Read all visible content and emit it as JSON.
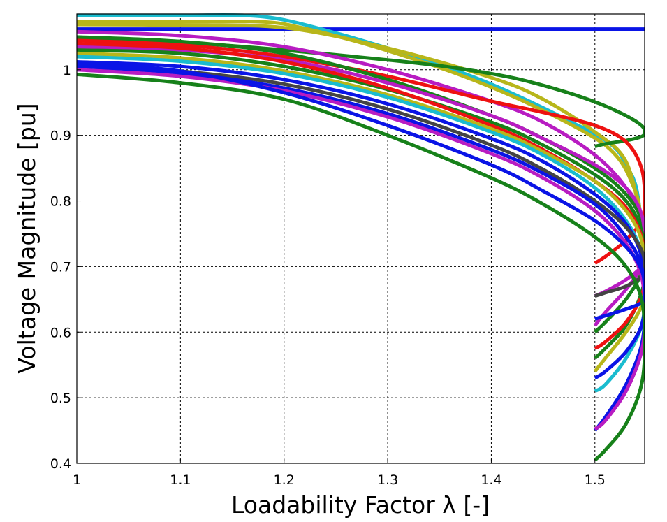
{
  "chart_data": {
    "type": "line",
    "xlabel": "Loadability Factor λ [-]",
    "ylabel": "Voltage Magnitude [pu]",
    "xlim": [
      1.0,
      1.548
    ],
    "ylim": [
      0.4,
      1.085
    ],
    "x_ticks": [
      1.0,
      1.1,
      1.2,
      1.3,
      1.4,
      1.5
    ],
    "x_tick_labels": [
      "1",
      "1.1",
      "1.2",
      "1.3",
      "1.4",
      "1.5"
    ],
    "y_ticks": [
      0.4,
      0.5,
      0.6,
      0.7,
      0.8,
      0.9,
      1.0
    ],
    "y_tick_labels": [
      "0.4",
      "0.5",
      "0.6",
      "0.7",
      "0.8",
      "0.9",
      "1"
    ],
    "grid": true,
    "legend": "none",
    "colors": {
      "blue": "#0a14e6",
      "red": "#ee1111",
      "green": "#17811a",
      "magenta": "#b81cc2",
      "cyan": "#1abccf",
      "olive": "#b8b61a",
      "darkgray": "#444444"
    },
    "series": [
      {
        "color": "blue",
        "x": [
          1.0,
          1.548
        ],
        "y": [
          1.062,
          1.062
        ]
      },
      {
        "color": "cyan",
        "x": [
          1.0,
          1.1,
          1.16,
          1.2,
          1.25,
          1.3,
          1.35,
          1.4,
          1.45,
          1.48,
          1.5,
          1.52,
          1.53,
          1.54,
          1.546
        ],
        "y": [
          1.083,
          1.083,
          1.083,
          1.076,
          1.056,
          1.033,
          1.008,
          0.978,
          0.942,
          0.918,
          0.902,
          0.88,
          0.855,
          0.82,
          0.75
        ]
      },
      {
        "color": "olive",
        "x": [
          1.0,
          1.1,
          1.18,
          1.22,
          1.27,
          1.32,
          1.37,
          1.42,
          1.46,
          1.49,
          1.51,
          1.525,
          1.535,
          1.543,
          1.547
        ],
        "y": [
          1.073,
          1.073,
          1.073,
          1.063,
          1.043,
          1.019,
          0.992,
          0.96,
          0.93,
          0.905,
          0.885,
          0.86,
          0.83,
          0.79,
          0.7
        ]
      },
      {
        "color": "olive",
        "x": [
          1.0,
          1.1,
          1.2,
          1.3,
          1.4,
          1.45,
          1.5,
          1.53,
          1.545
        ],
        "y": [
          1.069,
          1.068,
          1.064,
          1.033,
          0.988,
          0.955,
          0.905,
          0.86,
          0.77
        ]
      },
      {
        "color": "green",
        "x": [
          1.0,
          1.1,
          1.2,
          1.3,
          1.36,
          1.42,
          1.47,
          1.505,
          1.53,
          1.545,
          1.548,
          1.545,
          1.53,
          1.51,
          1.5
        ],
        "y": [
          1.048,
          1.042,
          1.03,
          1.015,
          1.004,
          0.988,
          0.967,
          0.948,
          0.93,
          0.915,
          0.905,
          0.898,
          0.892,
          0.887,
          0.883
        ]
      },
      {
        "color": "magenta",
        "x": [
          1.0,
          1.1,
          1.2,
          1.3,
          1.4,
          1.45,
          1.5,
          1.53,
          1.545,
          1.548,
          1.545,
          1.53,
          1.51,
          1.5
        ],
        "y": [
          1.058,
          1.052,
          1.035,
          1.0,
          0.952,
          0.92,
          0.87,
          0.82,
          0.77,
          0.72,
          0.7,
          0.68,
          0.662,
          0.655
        ]
      },
      {
        "color": "red",
        "x": [
          1.0,
          1.1,
          1.2,
          1.3,
          1.4,
          1.45,
          1.5,
          1.53,
          1.545,
          1.548,
          1.545,
          1.53,
          1.51,
          1.5
        ],
        "y": [
          1.045,
          1.038,
          1.02,
          0.99,
          0.952,
          0.935,
          0.915,
          0.89,
          0.85,
          0.8,
          0.77,
          0.74,
          0.715,
          0.705
        ]
      },
      {
        "color": "green",
        "x": [
          1.0,
          1.1,
          1.2,
          1.3,
          1.4,
          1.45,
          1.5,
          1.53,
          1.545,
          1.548,
          1.545,
          1.53,
          1.51,
          1.5
        ],
        "y": [
          1.05,
          1.043,
          1.025,
          0.985,
          0.93,
          0.895,
          0.85,
          0.81,
          0.77,
          0.72,
          0.69,
          0.65,
          0.615,
          0.6
        ]
      },
      {
        "color": "magenta",
        "x": [
          1.0,
          1.1,
          1.2,
          1.3,
          1.4,
          1.45,
          1.5,
          1.53,
          1.545,
          1.548,
          1.545,
          1.53,
          1.51,
          1.5
        ],
        "y": [
          1.035,
          1.03,
          1.015,
          0.98,
          0.93,
          0.895,
          0.855,
          0.82,
          0.78,
          0.73,
          0.7,
          0.665,
          0.63,
          0.61
        ]
      },
      {
        "color": "green",
        "x": [
          1.0,
          1.1,
          1.2,
          1.3,
          1.4,
          1.45,
          1.5,
          1.53,
          1.545,
          1.548,
          1.545,
          1.53,
          1.51,
          1.5
        ],
        "y": [
          1.03,
          1.025,
          1.005,
          0.97,
          0.92,
          0.885,
          0.84,
          0.8,
          0.755,
          0.7,
          0.66,
          0.61,
          0.575,
          0.56
        ]
      },
      {
        "color": "red",
        "x": [
          1.0,
          1.1,
          1.2,
          1.3,
          1.4,
          1.45,
          1.5,
          1.53,
          1.545,
          1.548,
          1.545,
          1.53,
          1.51,
          1.5
        ],
        "y": [
          1.04,
          1.033,
          1.012,
          0.972,
          0.915,
          0.878,
          0.83,
          0.79,
          0.745,
          0.69,
          0.655,
          0.615,
          0.585,
          0.575
        ]
      },
      {
        "color": "olive",
        "x": [
          1.0,
          1.1,
          1.2,
          1.3,
          1.4,
          1.45,
          1.5,
          1.53,
          1.545,
          1.548,
          1.545,
          1.53,
          1.51,
          1.5
        ],
        "y": [
          1.025,
          1.018,
          0.998,
          0.962,
          0.91,
          0.875,
          0.83,
          0.785,
          0.74,
          0.68,
          0.64,
          0.6,
          0.56,
          0.54
        ]
      },
      {
        "color": "cyan",
        "x": [
          1.0,
          1.1,
          1.2,
          1.3,
          1.4,
          1.45,
          1.5,
          1.53,
          1.545,
          1.548,
          1.545,
          1.53,
          1.51,
          1.5
        ],
        "y": [
          1.02,
          1.013,
          0.994,
          0.958,
          0.905,
          0.87,
          0.82,
          0.77,
          0.72,
          0.66,
          0.61,
          0.56,
          0.52,
          0.51
        ]
      },
      {
        "color": "blue",
        "x": [
          1.0,
          1.1,
          1.2,
          1.3,
          1.4,
          1.45,
          1.5,
          1.53,
          1.545,
          1.548,
          1.545,
          1.53,
          1.51,
          1.5
        ],
        "y": [
          1.012,
          1.005,
          0.985,
          0.948,
          0.895,
          0.86,
          0.81,
          0.765,
          0.715,
          0.655,
          0.61,
          0.57,
          0.54,
          0.53
        ]
      },
      {
        "color": "darkgray",
        "x": [
          1.0,
          1.1,
          1.2,
          1.3,
          1.4,
          1.45,
          1.5,
          1.53,
          1.545,
          1.548,
          1.545,
          1.53,
          1.51,
          1.5
        ],
        "y": [
          1.008,
          0.998,
          0.978,
          0.94,
          0.885,
          0.848,
          0.8,
          0.76,
          0.725,
          0.7,
          0.685,
          0.67,
          0.66,
          0.655
        ]
      },
      {
        "color": "blue",
        "x": [
          1.0,
          1.1,
          1.2,
          1.3,
          1.4,
          1.45,
          1.5,
          1.53,
          1.545,
          1.548,
          1.545,
          1.53,
          1.51,
          1.5
        ],
        "y": [
          1.005,
          0.995,
          0.972,
          0.933,
          0.878,
          0.842,
          0.795,
          0.745,
          0.7,
          0.64,
          0.58,
          0.52,
          0.47,
          0.45
        ]
      },
      {
        "color": "magenta",
        "x": [
          1.0,
          1.1,
          1.2,
          1.3,
          1.4,
          1.45,
          1.5,
          1.53,
          1.545,
          1.548,
          1.545,
          1.53,
          1.51,
          1.5
        ],
        "y": [
          1.0,
          0.99,
          0.968,
          0.928,
          0.872,
          0.835,
          0.785,
          0.735,
          0.685,
          0.625,
          0.57,
          0.51,
          0.465,
          0.452
        ]
      },
      {
        "color": "blue",
        "x": [
          1.0,
          1.1,
          1.2,
          1.3,
          1.4,
          1.45,
          1.5,
          1.53,
          1.545,
          1.548,
          1.545,
          1.53,
          1.51,
          1.5
        ],
        "y": [
          1.01,
          0.998,
          0.965,
          0.915,
          0.855,
          0.815,
          0.77,
          0.73,
          0.695,
          0.66,
          0.645,
          0.635,
          0.625,
          0.62
        ]
      },
      {
        "color": "green",
        "x": [
          1.0,
          1.1,
          1.2,
          1.3,
          1.4,
          1.45,
          1.5,
          1.53,
          1.545,
          1.548,
          1.545,
          1.53,
          1.51,
          1.5
        ],
        "y": [
          0.993,
          0.98,
          0.955,
          0.9,
          0.835,
          0.795,
          0.745,
          0.7,
          0.65,
          0.585,
          0.52,
          0.46,
          0.42,
          0.405
        ]
      }
    ]
  }
}
